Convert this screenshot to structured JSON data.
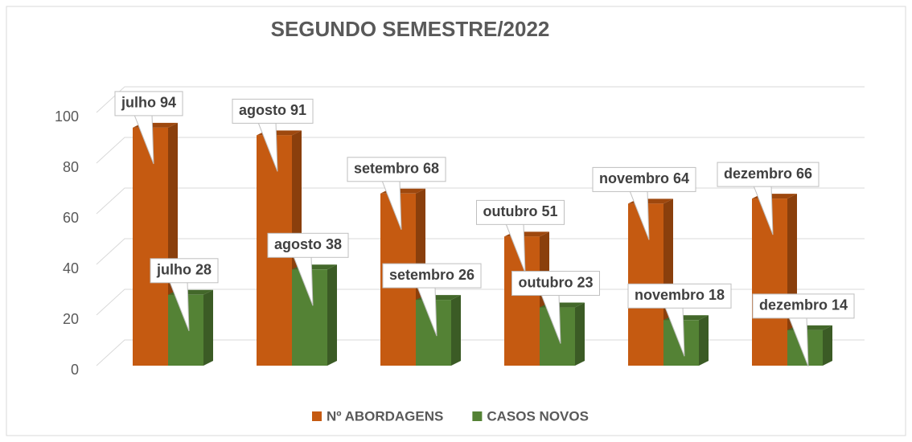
{
  "chart_data": {
    "type": "bar",
    "title": "SEGUNDO SEMESTRE/2022",
    "series": [
      {
        "name": "Nº ABORDAGENS",
        "color": "#c55a11",
        "values": [
          94,
          91,
          68,
          51,
          64,
          66
        ],
        "value_labels": [
          "julho 94",
          "agosto 91",
          "setembro 68",
          "outubro 51",
          "novembro 64",
          "dezembro 66"
        ]
      },
      {
        "name": "CASOS NOVOS",
        "color": "#548235",
        "values": [
          28,
          38,
          26,
          23,
          18,
          14
        ],
        "value_labels": [
          "julho 28",
          "agosto 38",
          "setembro 26",
          "outubro 23",
          "novembro 18",
          "dezembro 14"
        ]
      }
    ],
    "ylim": [
      0,
      100
    ],
    "yticks": [
      0,
      20,
      40,
      60,
      80,
      100
    ],
    "grid": true,
    "legend": "bottom"
  }
}
